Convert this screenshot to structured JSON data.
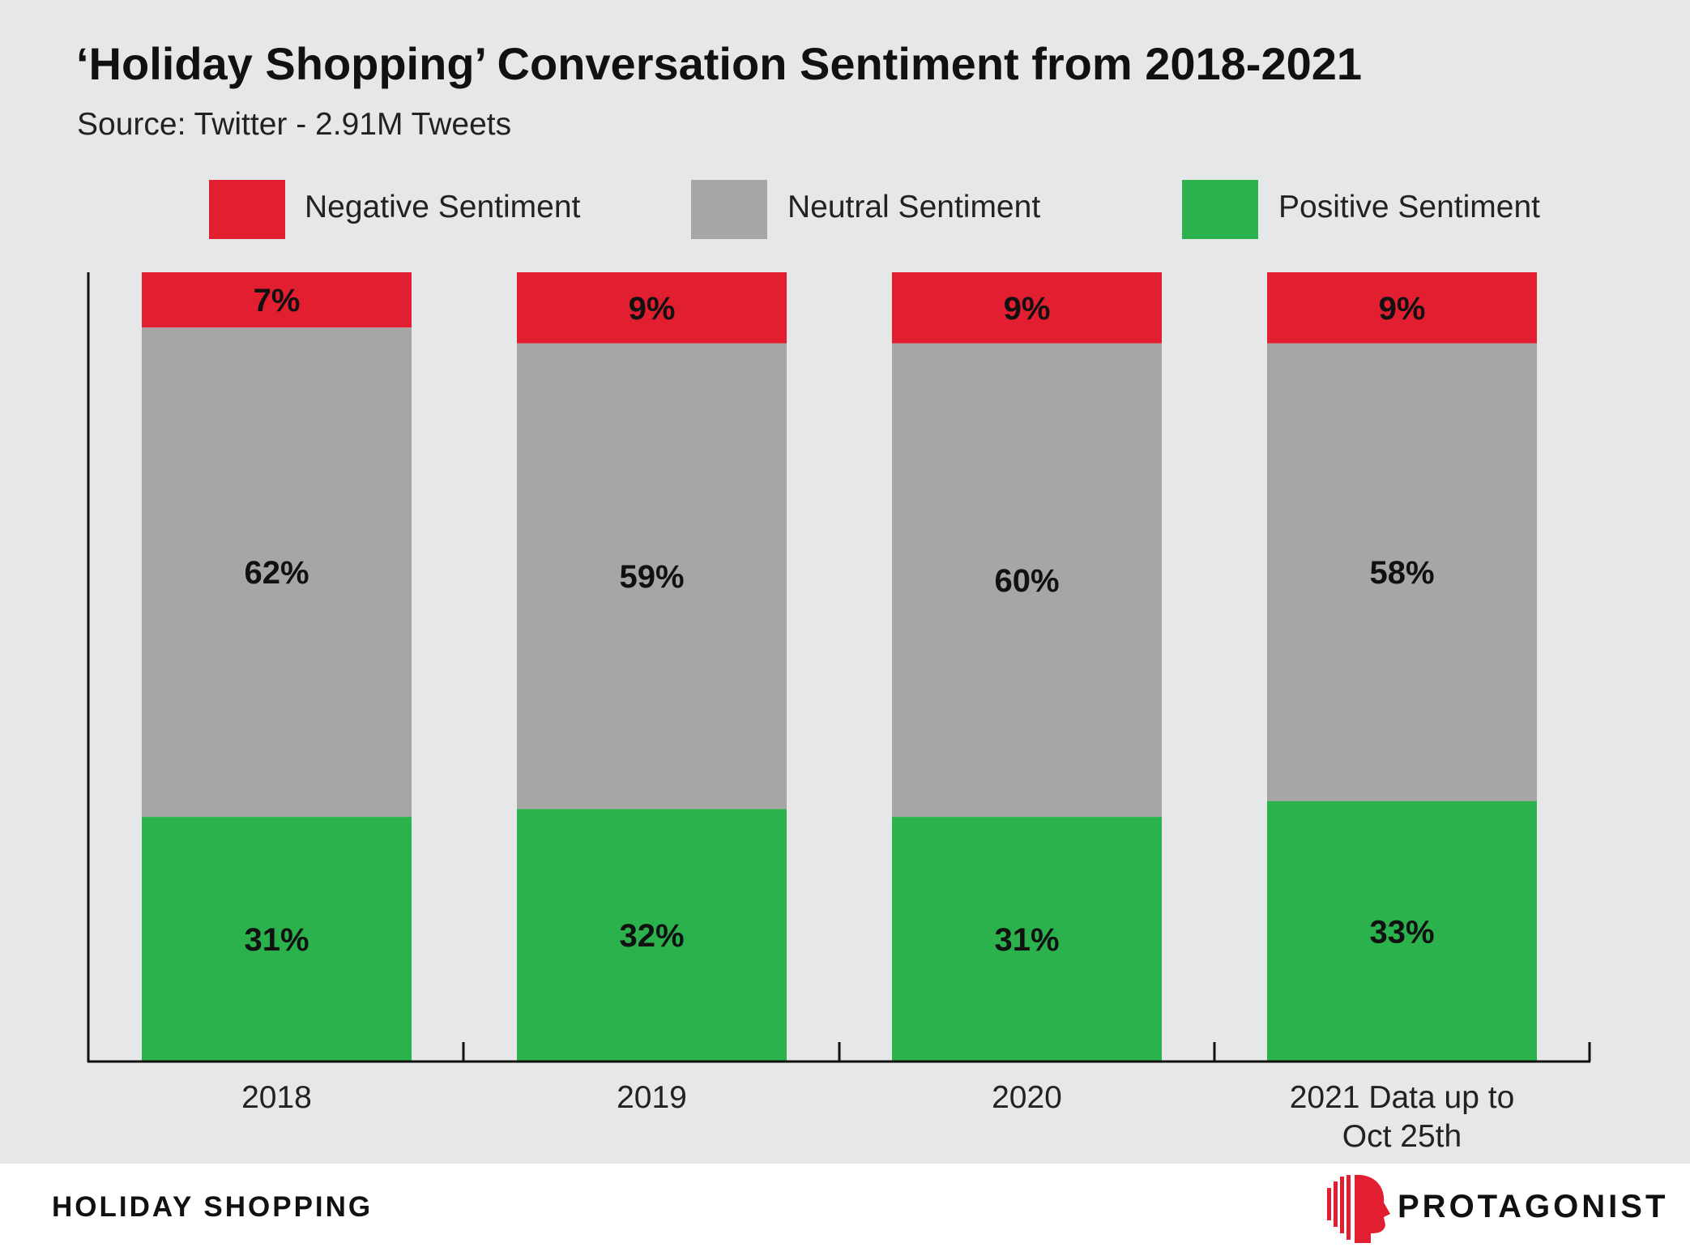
{
  "chart_data": {
    "type": "bar",
    "stacked": true,
    "title": "‘Holiday Shopping’ Conversation Sentiment from 2018-2021",
    "subtitle": "Source: Twitter - 2.91M Tweets",
    "categories": [
      "2018",
      "2019",
      "2020",
      "2021 Data up to Oct 25th"
    ],
    "category_lines": [
      [
        "2018"
      ],
      [
        "2019"
      ],
      [
        "2020"
      ],
      [
        "2021 Data up to",
        "Oct 25th"
      ]
    ],
    "series": [
      {
        "name": "Positive Sentiment",
        "color": "#2bb24c",
        "values": [
          31,
          32,
          31,
          33
        ],
        "labels": [
          "31%",
          "32%",
          "31%",
          "33%"
        ]
      },
      {
        "name": "Neutral Sentiment",
        "color": "#a6a6a5",
        "values": [
          62,
          59,
          60,
          58
        ],
        "labels": [
          "62%",
          "59%",
          "60%",
          "58%"
        ]
      },
      {
        "name": "Negative Sentiment",
        "color": "#e21f31",
        "values": [
          7,
          9,
          9,
          9
        ],
        "labels": [
          "7%",
          "9%",
          "9%",
          "9%"
        ]
      }
    ],
    "legend_order": [
      "Negative Sentiment",
      "Neutral Sentiment",
      "Positive Sentiment"
    ],
    "legend_position": "top",
    "ylim": [
      0,
      100
    ],
    "grid": false
  },
  "footer": {
    "topic": "HOLIDAY SHOPPING",
    "brand": "PROTAGONIST",
    "logo_icon": "protagonist-head-icon"
  },
  "colors": {
    "background": "#e6e7e8",
    "negative": "#e21f31",
    "neutral": "#a6a6a5",
    "positive": "#2bb24c"
  }
}
